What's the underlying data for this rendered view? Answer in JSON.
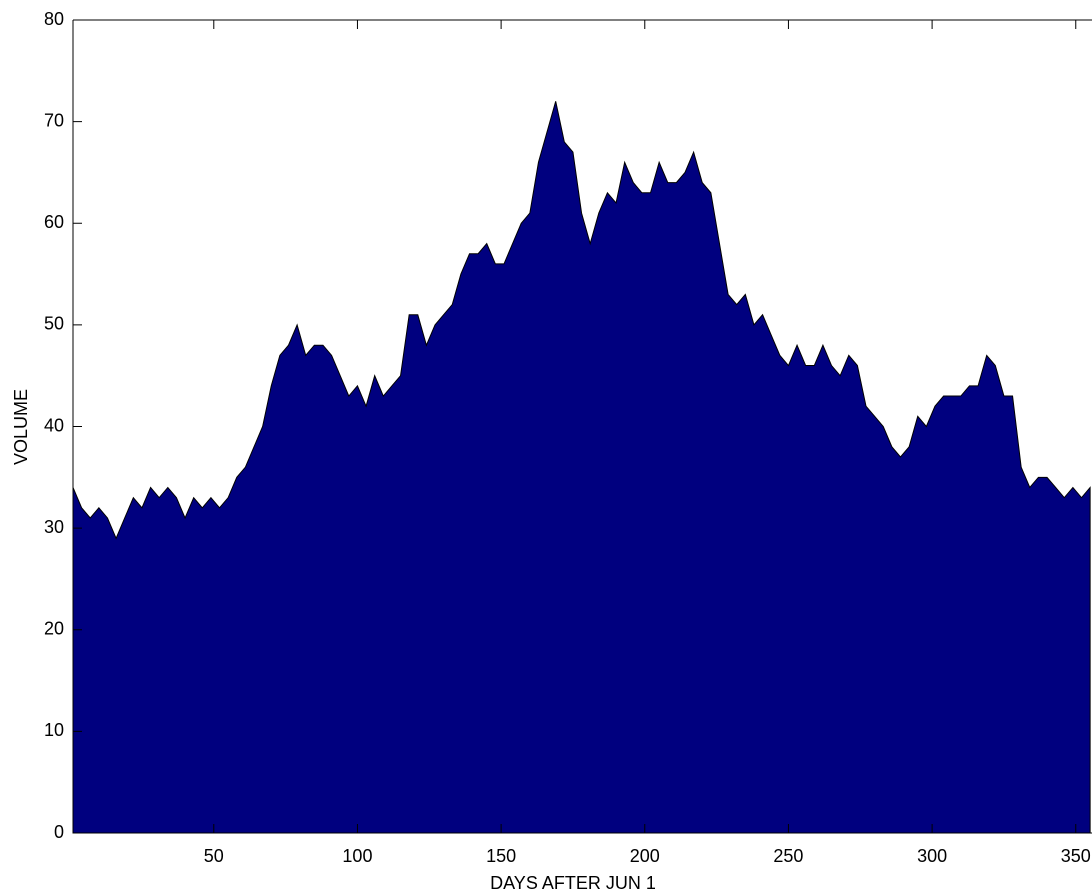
{
  "chart_data": {
    "type": "area",
    "xlabel": "DAYS AFTER JUN 1",
    "ylabel": "VOLUME",
    "color": "#00007f",
    "x": [
      1,
      4,
      7,
      10,
      13,
      16,
      19,
      22,
      25,
      28,
      31,
      34,
      37,
      40,
      43,
      46,
      49,
      52,
      55,
      58,
      61,
      64,
      67,
      70,
      73,
      76,
      79,
      82,
      85,
      88,
      91,
      94,
      97,
      100,
      103,
      106,
      109,
      112,
      115,
      118,
      121,
      124,
      127,
      130,
      133,
      136,
      139,
      142,
      145,
      148,
      151,
      154,
      157,
      160,
      163,
      166,
      169,
      172,
      175,
      178,
      181,
      184,
      187,
      190,
      193,
      196,
      199,
      202,
      205,
      208,
      211,
      214,
      217,
      220,
      223,
      226,
      229,
      232,
      235,
      238,
      241,
      244,
      247,
      250,
      253,
      256,
      259,
      262,
      265,
      268,
      271,
      274,
      277,
      280,
      283,
      286,
      289,
      292,
      295,
      298,
      301,
      304,
      307,
      310,
      313,
      316,
      319,
      322,
      325,
      328,
      331,
      334,
      337,
      340,
      343,
      346,
      349,
      352,
      355
    ],
    "values": [
      34,
      32,
      31,
      32,
      31,
      29,
      31,
      33,
      32,
      34,
      33,
      34,
      33,
      31,
      33,
      32,
      33,
      32,
      33,
      35,
      36,
      38,
      40,
      44,
      47,
      48,
      50,
      47,
      48,
      48,
      47,
      45,
      43,
      44,
      42,
      45,
      43,
      44,
      45,
      51,
      51,
      48,
      50,
      51,
      52,
      55,
      57,
      57,
      58,
      56,
      56,
      58,
      60,
      61,
      66,
      69,
      72,
      68,
      67,
      61,
      58,
      61,
      63,
      62,
      66,
      64,
      63,
      63,
      66,
      64,
      64,
      65,
      67,
      64,
      63,
      58,
      53,
      52,
      53,
      50,
      51,
      49,
      47,
      46,
      48,
      46,
      46,
      48,
      46,
      45,
      47,
      46,
      42,
      41,
      40,
      38,
      37,
      38,
      41,
      40,
      42,
      43,
      43,
      43,
      44,
      44,
      47,
      46,
      43,
      43,
      36,
      34,
      35,
      35,
      34,
      33,
      34,
      33,
      34
    ],
    "xlim": [
      1,
      356
    ],
    "ylim": [
      0,
      80
    ],
    "xticks": [
      50,
      100,
      150,
      200,
      250,
      300,
      350
    ],
    "yticks": [
      0,
      10,
      20,
      30,
      40,
      50,
      60,
      70,
      80
    ]
  }
}
